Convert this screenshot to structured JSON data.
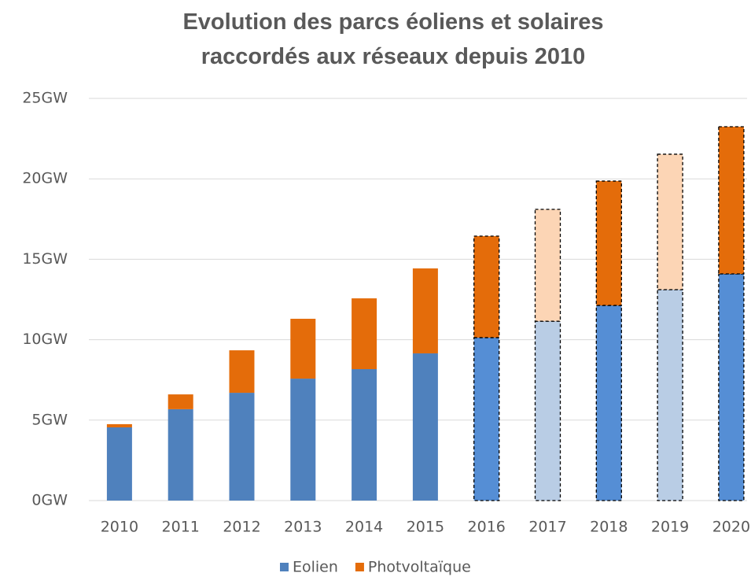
{
  "chart_data": {
    "type": "stacked_bar",
    "title": "Evolution des parcs éoliens et solaires raccordés aux réseaux depuis 2010",
    "categories": [
      "2010",
      "2011",
      "2012",
      "2013",
      "2014",
      "2015",
      "2016",
      "2017",
      "2018",
      "2019",
      "2020"
    ],
    "series": [
      {
        "name": "Eolien",
        "color": "#4f81bd",
        "values": [
          4.55,
          5.68,
          6.7,
          7.58,
          8.17,
          9.15,
          10.13,
          11.15,
          12.13,
          13.11,
          14.09
        ],
        "colors": [
          "#4f81bd",
          "#4f81bd",
          "#4f81bd",
          "#4f81bd",
          "#4f81bd",
          "#4f81bd",
          "#558ed5",
          "#b9cde5",
          "#558ed5",
          "#b9cde5",
          "#558ed5"
        ]
      },
      {
        "name": "Photvoltaïque",
        "color": "#e46c0a",
        "values": [
          0.2,
          0.92,
          2.64,
          3.72,
          4.4,
          5.28,
          6.31,
          6.95,
          7.73,
          8.42,
          9.15
        ],
        "colors": [
          "#e46c0a",
          "#e46c0a",
          "#e46c0a",
          "#e46c0a",
          "#e46c0a",
          "#e46c0a",
          "#e46c0a",
          "#fcd5b5",
          "#e46c0a",
          "#fcd5b5",
          "#e46c0a"
        ]
      }
    ],
    "dashed": [
      false,
      false,
      false,
      false,
      false,
      false,
      true,
      true,
      true,
      true,
      true
    ],
    "ylim": [
      0,
      25
    ],
    "yticks": [
      {
        "value": 0,
        "label": "0GW"
      },
      {
        "value": 5,
        "label": "5GW"
      },
      {
        "value": 10,
        "label": "10GW"
      },
      {
        "value": 15,
        "label": "15GW"
      },
      {
        "value": 20,
        "label": "20GW"
      },
      {
        "value": 25,
        "label": "25GW"
      }
    ],
    "grid": true,
    "legend": "bottom"
  }
}
